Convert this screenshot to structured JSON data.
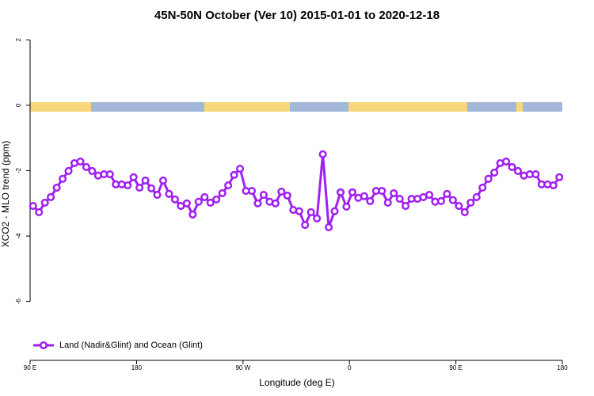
{
  "chart_data": {
    "type": "line",
    "title": "45N-50N October (Ver 10)   2015-01-01 to 2020-12-18",
    "x_label": "Longitude (deg E)",
    "y_label": "XCO2 - MLO trend (ppm)",
    "x": [
      92.5,
      97.5,
      102.5,
      107.5,
      112.5,
      117.5,
      122.5,
      127.5,
      132.5,
      137.5,
      142.5,
      147.5,
      152.5,
      157.5,
      162.5,
      167.5,
      172.5,
      177.5,
      182.5,
      187.5,
      192.5,
      197.5,
      202.5,
      207.5,
      212.5,
      217.5,
      222.5,
      227.5,
      232.5,
      237.5,
      242.5,
      247.5,
      252.5,
      257.5,
      262.5,
      267.5,
      272.5,
      277.5,
      282.5,
      287.5,
      292.5,
      297.5,
      302.5,
      307.5,
      312.5,
      317.5,
      322.5,
      327.5,
      332.5,
      337.5,
      342.5,
      347.5,
      352.5,
      357.5,
      362.5,
      367.5,
      372.5,
      377.5,
      382.5,
      387.5,
      392.5,
      397.5,
      402.5,
      407.5,
      412.5,
      417.5,
      422.5,
      427.5,
      432.5,
      437.5,
      442.5,
      447.5,
      452.5,
      457.5,
      462.5,
      467.5,
      472.5,
      477.5,
      482.5,
      487.5,
      492.5,
      497.5,
      502.5,
      507.5,
      512.5,
      517.5,
      522.5,
      527.5,
      532.5,
      537.5
    ],
    "series": [
      {
        "name": "Land (Nadir&Glint) and Ocean (Glint)",
        "color": "#a020f0",
        "values": [
          -3.08,
          -3.27,
          -2.98,
          -2.81,
          -2.52,
          -2.25,
          -2.01,
          -1.77,
          -1.72,
          -1.89,
          -2.01,
          -2.15,
          -2.11,
          -2.11,
          -2.42,
          -2.42,
          -2.45,
          -2.2,
          -2.52,
          -2.3,
          -2.54,
          -2.74,
          -2.3,
          -2.71,
          -2.88,
          -3.08,
          -3.0,
          -3.34,
          -2.95,
          -2.81,
          -2.98,
          -2.88,
          -2.69,
          -2.45,
          -2.13,
          -1.94,
          -2.62,
          -2.62,
          -3.0,
          -2.74,
          -2.95,
          -3.0,
          -2.64,
          -2.76,
          -3.2,
          -3.24,
          -3.66,
          -3.27,
          -3.46,
          -1.5,
          -3.73,
          -3.24,
          -2.66,
          -3.1,
          -2.66,
          -2.83,
          -2.78,
          -2.93,
          -2.62,
          -2.62,
          -2.98,
          -2.69,
          -2.86,
          -3.08,
          -2.86,
          -2.86,
          -2.81,
          -2.74,
          -2.95,
          -2.93,
          -2.71,
          -2.9,
          -3.08,
          -3.27,
          -2.98,
          -2.81,
          -2.52,
          -2.25,
          -2.06,
          -1.77,
          -1.72,
          -1.89,
          -2.01,
          -2.15,
          -2.11,
          -2.11,
          -2.42,
          -2.42,
          -2.45,
          -2.2
        ]
      }
    ],
    "xlim": [
      90,
      540
    ],
    "xticks": [
      {
        "value": 90,
        "label": "90 E"
      },
      180,
      {
        "value": 270,
        "label": "90 W"
      },
      {
        "value": 360,
        "label": "0"
      },
      {
        "value": 450,
        "label": "90 E"
      },
      {
        "value": 540,
        "label": "180"
      }
    ],
    "ylim": [
      -7.8,
      2.25
    ],
    "yticks": [
      2,
      0,
      -2,
      -4,
      -6
    ],
    "legend": "bottom-left"
  }
}
